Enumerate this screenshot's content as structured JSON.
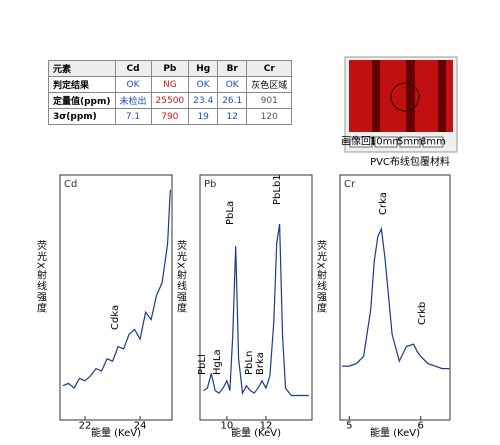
{
  "table": {
    "header": [
      "元素",
      "Cd",
      "Pb",
      "Hg",
      "Br",
      "Cr"
    ],
    "rows": [
      [
        "判定结果",
        "OK",
        "NG",
        "OK",
        "OK",
        "灰色区域"
      ],
      [
        "定量值(ppm)",
        "未检出",
        25500,
        23.4,
        26.1,
        901
      ],
      [
        "3σ(ppm)",
        7.1,
        790,
        19,
        12,
        120
      ]
    ],
    "cell_colors": [
      [
        "#000",
        "#1f4fbf",
        "#d01818",
        "#1f4fbf",
        "#1f4fbf",
        "#000"
      ],
      [
        "#000",
        "#1f4fbf",
        "#d01818",
        "#1f4fbf",
        "#1f4fbf",
        "#555"
      ],
      [
        "#000",
        "#1f4fbf",
        "#d01818",
        "#1f4fbf",
        "#1f4fbf",
        "#555"
      ]
    ]
  },
  "photo": {
    "caption": "PVC布线包覆材料",
    "buttons": [
      "画像回転",
      "10mm",
      "5mm",
      "3mm"
    ]
  },
  "chart_data": [
    {
      "type": "line",
      "title": "Cd",
      "x_label": "能量 (KeV)",
      "y_label": "荧光X射线强度",
      "color": "#1a3a8a",
      "x": [
        21.2,
        21.4,
        21.6,
        21.8,
        22.0,
        22.2,
        22.4,
        22.6,
        22.8,
        23.0,
        23.2,
        23.4,
        23.6,
        23.8,
        24.0,
        24.2,
        24.4,
        24.6,
        24.8,
        25.0,
        25.1
      ],
      "values": [
        14,
        15,
        13,
        17,
        16,
        18,
        21,
        20,
        25,
        24,
        30,
        29,
        35,
        37,
        33,
        44,
        41,
        51,
        56,
        72,
        94
      ],
      "xlim": [
        21.09,
        25.16
      ],
      "xticks": [
        22,
        24
      ],
      "ylim": [
        0,
        100
      ],
      "annotations": [
        "Cdka"
      ]
    },
    {
      "type": "line",
      "title": "Pb",
      "x_label": "能量 (KeV)",
      "y_label": "荧光X射线强度",
      "color": "#1a3a8a",
      "x": [
        8.8,
        9.0,
        9.2,
        9.4,
        9.6,
        9.8,
        10.0,
        10.15,
        10.3,
        10.45,
        10.6,
        10.8,
        11.0,
        11.2,
        11.4,
        11.6,
        11.8,
        12.0,
        12.2,
        12.4,
        12.55,
        12.7,
        12.85,
        13.0,
        13.3,
        13.7,
        14.2
      ],
      "values": [
        12,
        13,
        19,
        12,
        11,
        13,
        16,
        12,
        35,
        71,
        25,
        11,
        14,
        12,
        11,
        13,
        16,
        13,
        18,
        40,
        72,
        80,
        35,
        13,
        10,
        10,
        10
      ],
      "xlim": [
        8.62,
        14.36
      ],
      "xticks": [
        10,
        12
      ],
      "ylim": [
        0,
        100
      ],
      "annotations": [
        "PbLl",
        "HgLa",
        "PbLa",
        "PbLn",
        "Brka",
        "PbLb1"
      ]
    },
    {
      "type": "line",
      "title": "Cr",
      "x_label": "能量 (KeV)",
      "y_label": "荧光X射线强度",
      "color": "#1a3a8a",
      "x": [
        4.9,
        5.0,
        5.1,
        5.2,
        5.3,
        5.35,
        5.4,
        5.45,
        5.5,
        5.6,
        5.7,
        5.8,
        5.9,
        5.95,
        6.0,
        6.1,
        6.2,
        6.3,
        6.4
      ],
      "values": [
        22,
        22,
        23,
        26,
        45,
        65,
        75,
        78,
        66,
        35,
        24,
        30,
        31,
        28,
        26,
        23,
        22,
        21,
        21
      ],
      "xlim": [
        4.87,
        6.41
      ],
      "xticks": [
        5,
        6
      ],
      "ylim": [
        0,
        100
      ],
      "annotations": [
        "Crka",
        "Crkb"
      ]
    }
  ]
}
